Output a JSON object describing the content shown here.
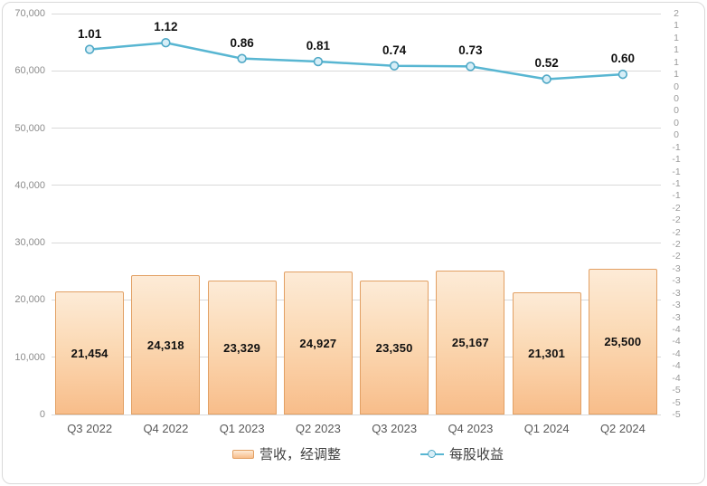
{
  "chart_data": {
    "type": "combo",
    "categories": [
      "Q3 2022",
      "Q4 2022",
      "Q1 2023",
      "Q2 2023",
      "Q3 2023",
      "Q4 2023",
      "Q1 2024",
      "Q2 2024"
    ],
    "series": [
      {
        "name": "营收，经调整",
        "type": "bar",
        "axis": "left",
        "values": [
          21454,
          24318,
          23329,
          24927,
          23350,
          25167,
          21301,
          25500
        ],
        "labels": [
          "21,454",
          "24,318",
          "23,329",
          "24,927",
          "23,350",
          "25,167",
          "21,301",
          "25,500"
        ]
      },
      {
        "name": "每股收益",
        "type": "line",
        "axis": "right",
        "values": [
          1.01,
          1.12,
          0.86,
          0.81,
          0.74,
          0.73,
          0.52,
          0.6
        ],
        "labels": [
          "1.01",
          "1.12",
          "0.86",
          "0.81",
          "0.74",
          "0.73",
          "0.52",
          "0.60"
        ]
      }
    ],
    "left_axis": {
      "min": 0,
      "max": 70000,
      "ticks": [
        "70,000",
        "60,000",
        "50,000",
        "40,000",
        "30,000",
        "20,000",
        "10,000",
        "0"
      ]
    },
    "right_axis": {
      "min": -5.0,
      "max": 1.6,
      "tick_labels": [
        "2",
        "1",
        "1",
        "1",
        "1",
        "1",
        "0",
        "0",
        "0",
        "0",
        "0",
        "-1",
        "-1",
        "-1",
        "-1",
        "-1",
        "-2",
        "-2",
        "-2",
        "-2",
        "-2",
        "-3",
        "-3",
        "-3",
        "-3",
        "-3",
        "-4",
        "-4",
        "-4",
        "-4",
        "-4",
        "-5",
        "-5",
        "-5"
      ]
    },
    "legend_position": "bottom",
    "grid": true,
    "colors": {
      "bar_fill_top": "#FDEBD7",
      "bar_fill_bottom": "#F8BD8A",
      "bar_border": "#E2A064",
      "line": "#58B6D2",
      "marker_fill": "#D7EEF7",
      "marker_stroke": "#4FA8C6",
      "gridline": "#D9D9D9",
      "axis_text": "#8C8C8C",
      "category_text": "#595959",
      "data_label": "#111111",
      "chart_border": "#D9D9D9"
    }
  }
}
